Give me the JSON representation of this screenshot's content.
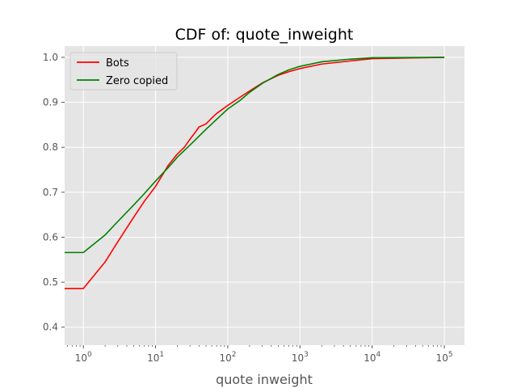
{
  "chart_data": {
    "type": "line",
    "title": "CDF of: quote_inweight",
    "xlabel": "quote inweight",
    "ylabel": "",
    "xscale": "log",
    "xlim": [
      0.55,
      190000
    ],
    "ylim": [
      0.36,
      1.025
    ],
    "grid": true,
    "background": "#e5e5e5",
    "legend_position": "top-left",
    "yticks": [
      0.4,
      0.5,
      0.6,
      0.7,
      0.8,
      0.9,
      1.0
    ],
    "ytick_labels": [
      "0.4",
      "0.5",
      "0.6",
      "0.7",
      "0.8",
      "0.9",
      "1.0"
    ],
    "xticks": [
      {
        "value": 1,
        "base": "10",
        "exp": "0"
      },
      {
        "value": 10,
        "base": "10",
        "exp": "1"
      },
      {
        "value": 100,
        "base": "10",
        "exp": "2"
      },
      {
        "value": 1000,
        "base": "10",
        "exp": "3"
      },
      {
        "value": 10000,
        "base": "10",
        "exp": "4"
      },
      {
        "value": 100000,
        "base": "10",
        "exp": "5"
      }
    ],
    "series": [
      {
        "name": "Bots",
        "color": "#ff0000",
        "points": [
          [
            0.55,
            0.486
          ],
          [
            1,
            0.486
          ],
          [
            2,
            0.545
          ],
          [
            3,
            0.59
          ],
          [
            5,
            0.645
          ],
          [
            7,
            0.68
          ],
          [
            10,
            0.713
          ],
          [
            15,
            0.76
          ],
          [
            20,
            0.785
          ],
          [
            25,
            0.8
          ],
          [
            30,
            0.818
          ],
          [
            35,
            0.832
          ],
          [
            40,
            0.845
          ],
          [
            50,
            0.852
          ],
          [
            60,
            0.865
          ],
          [
            70,
            0.875
          ],
          [
            100,
            0.893
          ],
          [
            150,
            0.912
          ],
          [
            200,
            0.925
          ],
          [
            300,
            0.943
          ],
          [
            500,
            0.96
          ],
          [
            700,
            0.968
          ],
          [
            1000,
            0.975
          ],
          [
            2000,
            0.985
          ],
          [
            5000,
            0.992
          ],
          [
            10000,
            0.997
          ],
          [
            100000,
            1.0
          ]
        ]
      },
      {
        "name": "Zero copied",
        "color": "#008000",
        "points": [
          [
            0.55,
            0.566
          ],
          [
            1,
            0.566
          ],
          [
            2,
            0.605
          ],
          [
            3,
            0.635
          ],
          [
            5,
            0.672
          ],
          [
            7,
            0.697
          ],
          [
            10,
            0.725
          ],
          [
            15,
            0.755
          ],
          [
            20,
            0.778
          ],
          [
            30,
            0.805
          ],
          [
            50,
            0.84
          ],
          [
            70,
            0.862
          ],
          [
            100,
            0.885
          ],
          [
            150,
            0.905
          ],
          [
            200,
            0.922
          ],
          [
            300,
            0.942
          ],
          [
            500,
            0.962
          ],
          [
            700,
            0.972
          ],
          [
            1000,
            0.98
          ],
          [
            2000,
            0.99
          ],
          [
            5000,
            0.996
          ],
          [
            10000,
            0.999
          ],
          [
            100000,
            1.0
          ]
        ]
      }
    ]
  }
}
